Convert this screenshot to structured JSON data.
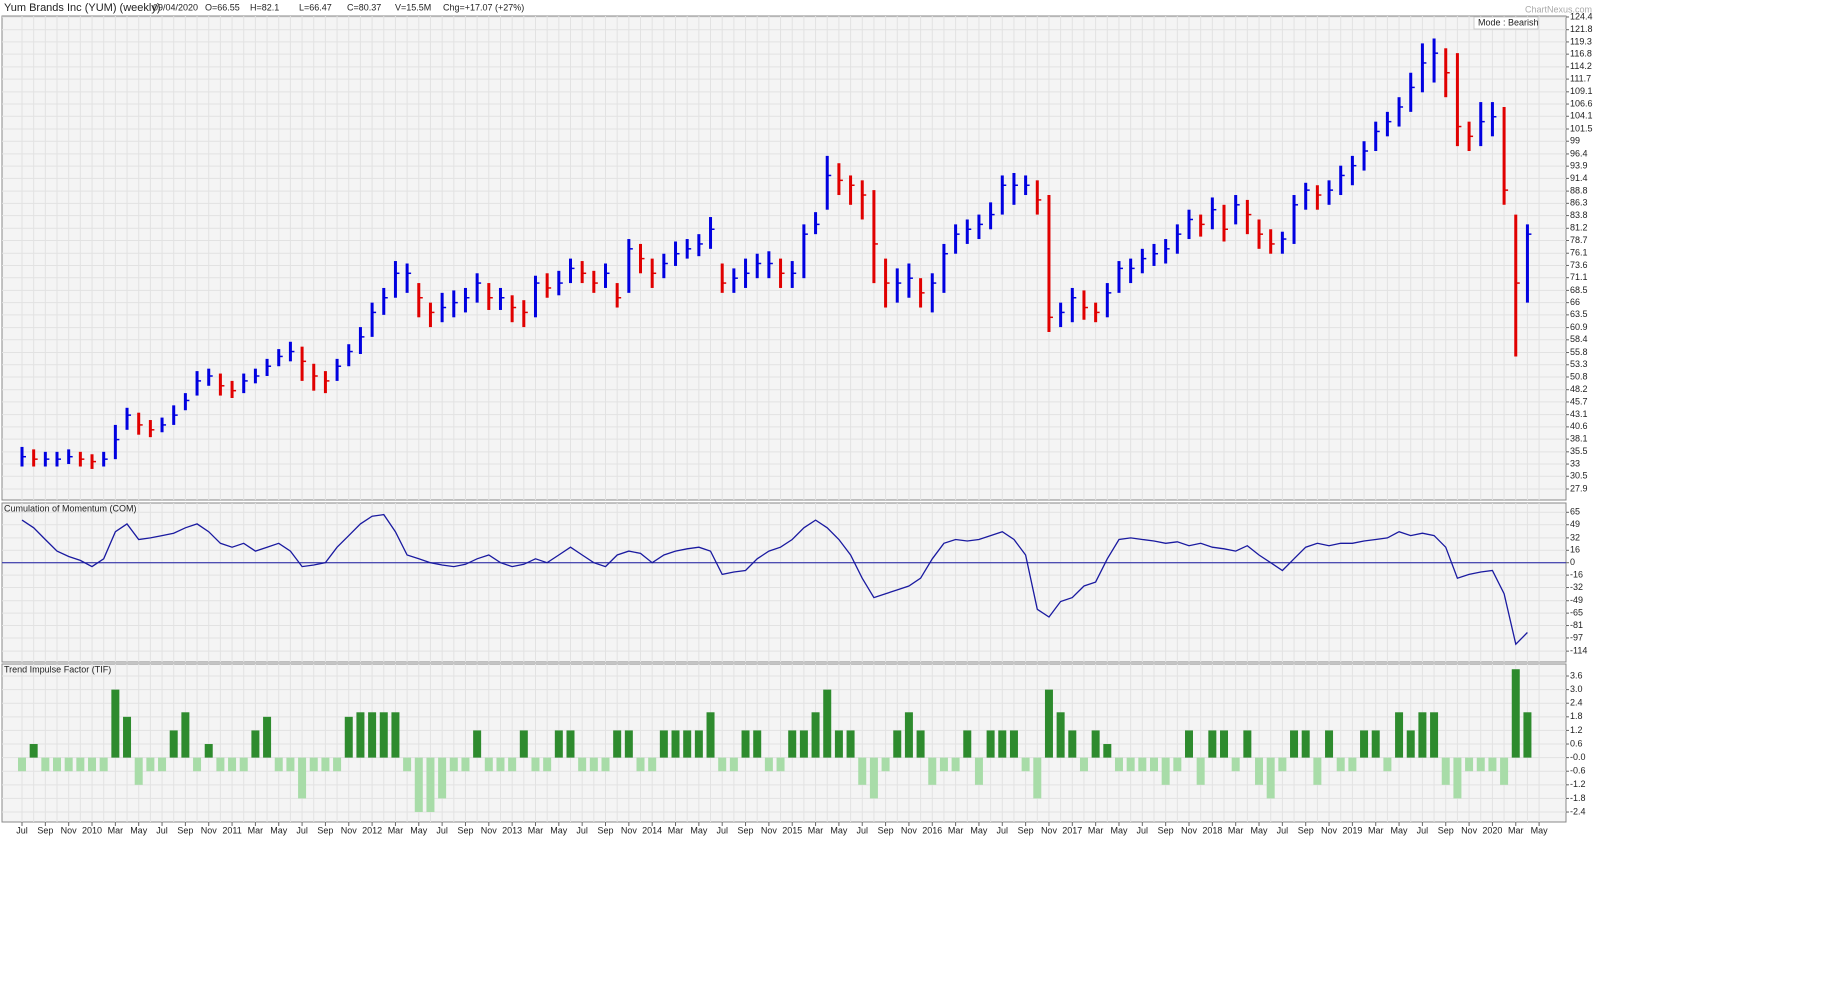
{
  "header": {
    "title": "Yum Brands Inc (YUM) (weekly)",
    "items": [
      "09/04/2020",
      "O=66.55",
      "H=82.1",
      "L=66.47",
      "C=80.37",
      "V=15.5M",
      "Chg=+17.07 (+27%)"
    ],
    "watermark": "ChartNexus.com"
  },
  "chart_data": [
    {
      "type": "ohlc",
      "annotation": "Mode : Bearish",
      "up_color": "#0000e0",
      "down_color": "#e00000",
      "grid": true,
      "categories": [
        "Jul",
        null,
        "Sep",
        null,
        "Nov",
        null,
        "2010",
        null,
        "Mar",
        null,
        "May",
        null,
        "Jul",
        null,
        "Sep",
        null,
        "Nov",
        null,
        "2011",
        null,
        "Mar",
        null,
        "May",
        null,
        "Jul",
        null,
        "Sep",
        null,
        "Nov",
        null,
        "2012",
        null,
        "Mar",
        null,
        "May",
        null,
        "Jul",
        null,
        "Sep",
        null,
        "Nov",
        null,
        "2013",
        null,
        "Mar",
        null,
        "May",
        null,
        "Jul",
        null,
        "Sep",
        null,
        "Nov",
        null,
        "2014",
        null,
        "Mar",
        null,
        "May",
        null,
        "Jul",
        null,
        "Sep",
        null,
        "Nov",
        null,
        "2015",
        null,
        "Mar",
        null,
        "May",
        null,
        "Jul",
        null,
        "Sep",
        null,
        "Nov",
        null,
        "2016",
        null,
        "Mar",
        null,
        "May",
        null,
        "Jul",
        null,
        "Sep",
        null,
        "Nov",
        null,
        "2017",
        null,
        "Mar",
        null,
        "May",
        null,
        "Jul",
        null,
        "Sep",
        null,
        "Nov",
        null,
        "2018",
        null,
        "Mar",
        null,
        "May",
        null,
        "Jul",
        null,
        "Sep",
        null,
        "Nov",
        null,
        "2019",
        null,
        "Mar",
        null,
        "May",
        null,
        "Jul",
        null,
        "Sep",
        null,
        "Nov",
        null,
        "2020",
        null,
        "Mar",
        null,
        "May"
      ],
      "close": [
        34.5,
        34,
        34,
        34,
        34.5,
        34,
        33.5,
        34,
        38,
        43,
        41,
        40,
        41,
        43,
        46,
        50,
        51,
        49,
        48,
        50,
        51,
        53,
        55,
        56,
        54,
        51,
        50,
        53,
        56,
        59,
        64,
        67,
        72,
        72,
        67,
        64,
        65,
        66,
        67,
        70,
        67,
        67,
        65,
        64,
        70,
        69,
        70,
        73,
        72,
        70,
        72,
        67,
        77,
        75,
        72,
        74,
        76,
        77,
        78,
        81,
        70,
        71,
        72,
        74,
        74,
        72,
        72,
        80,
        82,
        92,
        91,
        90,
        88,
        78,
        70,
        70,
        71,
        68,
        70,
        76,
        80,
        81,
        82,
        84,
        90,
        90,
        90,
        87,
        63,
        64,
        67,
        65,
        64,
        68,
        73,
        73,
        75,
        76,
        77,
        80,
        83,
        82,
        85,
        81,
        86,
        84,
        80,
        78,
        79,
        86,
        89,
        88,
        89,
        92,
        94,
        97,
        101,
        103,
        106,
        110,
        115,
        117,
        113,
        102,
        100,
        103,
        104,
        89,
        70,
        80,
        null
      ],
      "high": [
        36.5,
        36,
        35.5,
        35.5,
        36,
        35.5,
        35,
        35.5,
        41,
        44.5,
        43.5,
        42,
        42.5,
        45,
        47.5,
        52,
        52.5,
        51.5,
        50,
        51.5,
        52.5,
        54.5,
        56.5,
        58,
        57,
        53.5,
        52,
        54.5,
        57.5,
        61,
        66,
        69,
        74.5,
        74,
        70,
        66,
        68,
        68.5,
        69,
        72,
        70,
        69,
        67.5,
        66.5,
        71.5,
        72,
        72.5,
        75,
        74.5,
        72.5,
        74,
        70,
        79,
        78,
        75,
        76,
        78.5,
        79,
        80,
        83.5,
        74,
        73,
        75,
        76,
        76.5,
        75,
        74.5,
        82,
        84.5,
        96,
        94.5,
        92,
        91,
        89,
        75,
        73,
        74,
        71,
        72,
        78,
        82,
        83,
        84,
        86.5,
        92,
        92.5,
        92,
        91,
        88,
        66,
        69,
        68.5,
        66,
        70,
        74.5,
        75,
        77,
        78,
        79,
        82,
        85,
        84,
        87.5,
        86,
        88,
        87,
        83,
        81,
        80.5,
        88,
        90.5,
        90,
        91,
        94,
        96,
        99,
        103,
        105,
        108,
        113,
        119,
        120,
        118,
        117,
        103,
        107,
        107,
        106,
        84,
        82,
        null
      ],
      "low": [
        32.5,
        32.5,
        32.5,
        32.5,
        33,
        32.5,
        32,
        32.5,
        34,
        40,
        39,
        38.5,
        39.5,
        41,
        44,
        47,
        49,
        47,
        46.5,
        47.5,
        49.5,
        51,
        53,
        54,
        50,
        48,
        47.5,
        50,
        53,
        55.5,
        59,
        63.5,
        67,
        68,
        63,
        61,
        62,
        63,
        64,
        66,
        64.5,
        64.5,
        62,
        61,
        63,
        67,
        67.5,
        70,
        70,
        68,
        69,
        65,
        68,
        72,
        69,
        71,
        73.5,
        75,
        75.5,
        77,
        68,
        68,
        69,
        71,
        71,
        69,
        69,
        71,
        80,
        85,
        88,
        86,
        83,
        70,
        65,
        66,
        67,
        65,
        64,
        68,
        76,
        78,
        79,
        81,
        84,
        86,
        88,
        84,
        60,
        61,
        62,
        62.5,
        62,
        63,
        68,
        70,
        72,
        73.5,
        74,
        76,
        79,
        79.5,
        81,
        78.5,
        82,
        80,
        77,
        76,
        76,
        78,
        85,
        85,
        86,
        88,
        90,
        93,
        97,
        100,
        102,
        105,
        109,
        111,
        108,
        98,
        97,
        98,
        100,
        86,
        55,
        66,
        null
      ],
      "ylim": [
        25.65,
        124.6
      ],
      "yticks": [
        124.4,
        121.8,
        119.3,
        116.8,
        114.2,
        111.7,
        109.1,
        106.6,
        104.1,
        101.5,
        99,
        96.4,
        93.9,
        91.4,
        88.8,
        86.3,
        83.8,
        81.2,
        78.7,
        76.1,
        73.6,
        71.1,
        68.5,
        66,
        63.5,
        60.9,
        58.4,
        55.8,
        53.3,
        50.8,
        48.2,
        45.7,
        43.1,
        40.6,
        38.1,
        35.5,
        33,
        30.5,
        27.9
      ]
    },
    {
      "type": "line",
      "title": "Cumulation of Momentum (COM)",
      "color": "#1a1aa0",
      "grid": true,
      "values": [
        55,
        45,
        30,
        15,
        8,
        3,
        -5,
        5,
        40,
        50,
        30,
        32,
        35,
        38,
        45,
        50,
        40,
        25,
        20,
        25,
        15,
        20,
        25,
        15,
        -5,
        -3,
        0,
        20,
        35,
        50,
        60,
        62,
        40,
        10,
        5,
        0,
        -3,
        -5,
        -2,
        5,
        10,
        0,
        -5,
        -2,
        5,
        0,
        10,
        20,
        10,
        0,
        -5,
        10,
        15,
        12,
        0,
        10,
        15,
        18,
        20,
        15,
        -15,
        -12,
        -10,
        5,
        15,
        20,
        30,
        45,
        55,
        45,
        30,
        10,
        -20,
        -45,
        -40,
        -35,
        -30,
        -20,
        5,
        25,
        30,
        28,
        30,
        35,
        40,
        30,
        10,
        -60,
        -70,
        -50,
        -45,
        -30,
        -25,
        5,
        30,
        32,
        30,
        28,
        25,
        27,
        22,
        25,
        20,
        18,
        15,
        22,
        10,
        0,
        -10,
        5,
        20,
        25,
        22,
        25,
        25,
        28,
        30,
        32,
        40,
        35,
        38,
        35,
        20,
        -20,
        -15,
        -12,
        -10,
        -40,
        -105,
        -90,
        null
      ],
      "ylim": [
        -128,
        77
      ],
      "yticks": [
        65,
        49,
        32,
        16,
        0,
        -16,
        -32,
        -49,
        -65,
        -81,
        -97,
        -114
      ]
    },
    {
      "type": "bar",
      "title": "Trend Impulse Factor (TIF)",
      "color": "#2e8b2e",
      "negative_color": "#a8dca8",
      "grid": true,
      "values": [
        -0.6,
        0.6,
        -0.6,
        -0.6,
        -0.6,
        -0.6,
        -0.6,
        -0.6,
        3.0,
        1.8,
        -1.2,
        -0.6,
        -0.6,
        1.2,
        2.0,
        -0.6,
        0.6,
        -0.6,
        -0.6,
        -0.6,
        1.2,
        1.8,
        -0.6,
        -0.6,
        -1.8,
        -0.6,
        -0.6,
        -0.6,
        1.8,
        2.0,
        2.0,
        2.0,
        2.0,
        -0.6,
        -2.4,
        -2.4,
        -1.8,
        -0.6,
        -0.6,
        1.2,
        -0.6,
        -0.6,
        -0.6,
        1.2,
        -0.6,
        -0.6,
        1.2,
        1.2,
        -0.6,
        -0.6,
        -0.6,
        1.2,
        1.2,
        -0.6,
        -0.6,
        1.2,
        1.2,
        1.2,
        1.2,
        2.0,
        -0.6,
        -0.6,
        1.2,
        1.2,
        -0.6,
        -0.6,
        1.2,
        1.2,
        2.0,
        3.0,
        1.2,
        1.2,
        -1.2,
        -1.8,
        -0.6,
        1.2,
        2.0,
        1.2,
        -1.2,
        -0.6,
        -0.6,
        1.2,
        -1.2,
        1.2,
        1.2,
        1.2,
        -0.6,
        -1.8,
        3.0,
        2.0,
        1.2,
        -0.6,
        1.2,
        0.6,
        -0.6,
        -0.6,
        -0.6,
        -0.6,
        -1.2,
        -0.6,
        1.2,
        -1.2,
        1.2,
        1.2,
        -0.6,
        1.2,
        -1.2,
        -1.8,
        -0.6,
        1.2,
        1.2,
        -1.2,
        1.2,
        -0.6,
        -0.6,
        1.2,
        1.2,
        -0.6,
        2.0,
        1.2,
        2.0,
        2.0,
        -1.2,
        -1.8,
        -0.6,
        -0.6,
        -0.6,
        -1.2,
        3.9,
        2.0,
        null
      ],
      "ylim": [
        -2.84,
        4.13
      ],
      "yticks": [
        3.6,
        {
          "value": 3,
          "label": "3.0"
        },
        2.4,
        1.8,
        1.2,
        0.6,
        {
          "value": 0,
          "label": "-0.0"
        },
        -0.6,
        -1.2,
        -1.8,
        -2.4
      ]
    }
  ]
}
